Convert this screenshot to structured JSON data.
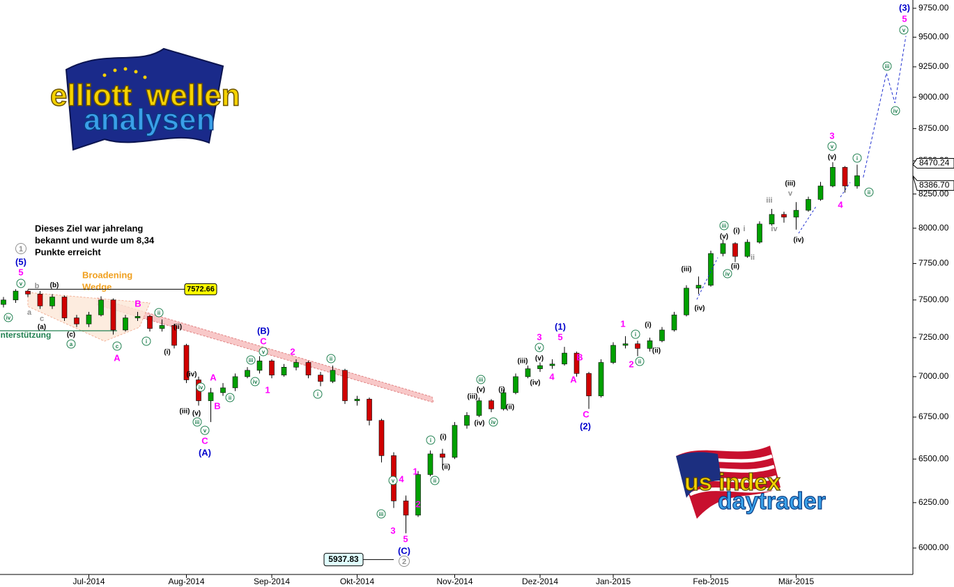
{
  "chart_data": {
    "type": "candlestick",
    "log_scale": true,
    "up_color": "#00a000",
    "down_color": "#d00000",
    "ylim": [
      5859,
      9823
    ],
    "yticks": [
      {
        "value": 6000,
        "label": "6000.00"
      },
      {
        "value": 6250,
        "label": "6250.00"
      },
      {
        "value": 6500,
        "label": "6500.00"
      },
      {
        "value": 6750,
        "label": "6750.00"
      },
      {
        "value": 7000,
        "label": "7000.00"
      },
      {
        "value": 7250,
        "label": "7250.00"
      },
      {
        "value": 7500,
        "label": "7500.00"
      },
      {
        "value": 7750,
        "label": "7750.00"
      },
      {
        "value": 8000,
        "label": "8000.00"
      },
      {
        "value": 8250,
        "label": "8250.00"
      },
      {
        "value": 8500,
        "label": "8500.00"
      },
      {
        "value": 8750,
        "label": "8750.00"
      },
      {
        "value": 9000,
        "label": "9000.00"
      },
      {
        "value": 9250,
        "label": "9250.00"
      },
      {
        "value": 9500,
        "label": "9500.00"
      },
      {
        "value": 9750,
        "label": "9750.00"
      }
    ],
    "categories": [
      null,
      null,
      null,
      null,
      null,
      null,
      null,
      "Jul-2014",
      null,
      null,
      null,
      null,
      null,
      null,
      null,
      "Aug-2014",
      null,
      null,
      null,
      null,
      null,
      null,
      "Sep-2014",
      null,
      null,
      null,
      null,
      null,
      null,
      "Okt-2014",
      null,
      null,
      null,
      null,
      null,
      null,
      null,
      "Nov-2014",
      null,
      null,
      null,
      null,
      null,
      null,
      "Dez-2014",
      null,
      null,
      null,
      null,
      null,
      "Jan-2015",
      null,
      null,
      null,
      null,
      null,
      null,
      null,
      "Feb-2015",
      null,
      null,
      null,
      null,
      null,
      null,
      "Mär-2015",
      null,
      null,
      null,
      null,
      null
    ],
    "open": [
      7470,
      7500,
      7560,
      7540,
      7460,
      7520,
      7380,
      7340,
      7400,
      7500,
      7300,
      7380,
      7390,
      7310,
      7330,
      7200,
      6980,
      6850,
      6900,
      6930,
      7000,
      7040,
      7100,
      7010,
      7060,
      7090,
      7010,
      6970,
      7040,
      6850,
      6860,
      6730,
      6520,
      6260,
      6180,
      6410,
      6530,
      6510,
      6700,
      6760,
      6850,
      6800,
      6900,
      7000,
      7050,
      7070,
      7080,
      7150,
      7020,
      6880,
      7090,
      7200,
      7210,
      7180,
      7230,
      7300,
      7400,
      7580,
      7600,
      7820,
      7890,
      7800,
      7900,
      8030,
      8100,
      8080,
      8130,
      8210,
      8310,
      8450,
      8310
    ],
    "high": [
      7520,
      7572.66,
      7570,
      7560,
      7540,
      7530,
      7400,
      7420,
      7525,
      7510,
      7400,
      7420,
      7400,
      7370,
      7340,
      7210,
      7000,
      6930,
      6960,
      7020,
      7060,
      7130,
      7110,
      7080,
      7110,
      7100,
      7030,
      7070,
      7050,
      6880,
      6870,
      6740,
      6540,
      6290,
      6430,
      6550,
      6560,
      6720,
      6780,
      6870,
      6860,
      6920,
      7020,
      7070,
      7090,
      7110,
      7190,
      7160,
      7030,
      7110,
      7220,
      7260,
      7230,
      7250,
      7320,
      7420,
      7600,
      7660,
      7840,
      7920,
      7900,
      7920,
      8050,
      8140,
      8120,
      8190,
      8230,
      8340,
      8490,
      8460,
      8470.24
    ],
    "low": [
      7450,
      7480,
      7520,
      7440,
      7440,
      7360,
      7320,
      7320,
      7390,
      7270,
      7290,
      7360,
      7290,
      7290,
      7180,
      6960,
      6820,
      6720,
      6880,
      6910,
      6990,
      7020,
      6990,
      7000,
      7040,
      6990,
      6940,
      6960,
      6830,
      6820,
      6700,
      6480,
      6220,
      6080,
      6170,
      6400,
      6460,
      6500,
      6680,
      6750,
      6780,
      6790,
      6890,
      6990,
      7030,
      7050,
      7070,
      7000,
      6800,
      6870,
      7080,
      7180,
      7130,
      7160,
      7220,
      7290,
      7390,
      7540,
      7590,
      7800,
      7760,
      7790,
      7890,
      8020,
      8040,
      7990,
      8120,
      8200,
      8300,
      8260,
      8290
    ],
    "close": [
      7500,
      7560,
      7540,
      7460,
      7520,
      7380,
      7340,
      7400,
      7500,
      7300,
      7380,
      7390,
      7310,
      7330,
      7200,
      6980,
      6850,
      6900,
      6930,
      7000,
      7040,
      7100,
      7010,
      7060,
      7090,
      7010,
      6970,
      7040,
      6850,
      6860,
      6730,
      6520,
      6260,
      6180,
      6410,
      6530,
      6510,
      6700,
      6760,
      6850,
      6800,
      6900,
      7000,
      7050,
      7070,
      7080,
      7150,
      7020,
      6880,
      7090,
      7200,
      7210,
      7180,
      7230,
      7300,
      7400,
      7580,
      7600,
      7820,
      7890,
      7800,
      7900,
      8030,
      8100,
      8080,
      8130,
      8210,
      8310,
      8450,
      8310,
      8386.7
    ],
    "price_labels": [
      8470.24,
      {
        "value": 8386.7,
        "label": "8386.70"
      }
    ],
    "target_level": 7572.66,
    "low_level": 5937.83,
    "support_level": 7295,
    "forecast": [
      8374,
      9198,
      8954,
      9510
    ],
    "note": [
      "Dieses Ziel war jahrelang",
      "bekannt und wurde um 8,34",
      "Punkte erreicht"
    ],
    "pattern_label": [
      "Broadening",
      "Wedge"
    ],
    "support_label": "Unterstützung",
    "logo_top": [
      "elliott",
      "wellen",
      "analysen"
    ],
    "logo_bottom": [
      "us index",
      "daytrader"
    ],
    "wave_labels": [
      "1",
      "(5)",
      "5",
      "v",
      "b",
      "(b)",
      "a",
      "c",
      "(a)",
      "iv",
      "(c)",
      "a",
      "c",
      "A",
      "B",
      "ii",
      "i",
      "(ii)",
      "(i)",
      "(iv)",
      "(iii)",
      "(v)",
      "iii",
      "v",
      "C",
      "(A)",
      "iv",
      "A",
      "B",
      "ii",
      "iii",
      "iv",
      "(B)",
      "C",
      "v",
      "1",
      "2",
      "ii",
      "i",
      "v",
      "4",
      "iii",
      "3",
      "5",
      "(C)",
      "2",
      "1",
      "2",
      "i",
      "(i)",
      "ii",
      "(ii)",
      "iii",
      "(v)",
      "(iii)",
      "(iv)",
      "iv",
      "(i)",
      "(ii)",
      "(iii)",
      "(iv)",
      "3",
      "v",
      "(v)",
      "4",
      "(1)",
      "5",
      "B",
      "A",
      "C",
      "(2)",
      "1",
      "i",
      "(i)",
      "2",
      "ii",
      "(ii)",
      "(iii)",
      "(iv)",
      "iii",
      "(v)",
      "(i)",
      "i",
      "iv",
      "(ii)",
      "ii",
      "iii",
      "iv",
      "(iii)",
      "v",
      "(iv)",
      "3",
      "v",
      "(v)",
      "4",
      "i",
      "ii",
      "iv",
      "iii",
      "v",
      "5",
      "(3)"
    ]
  }
}
